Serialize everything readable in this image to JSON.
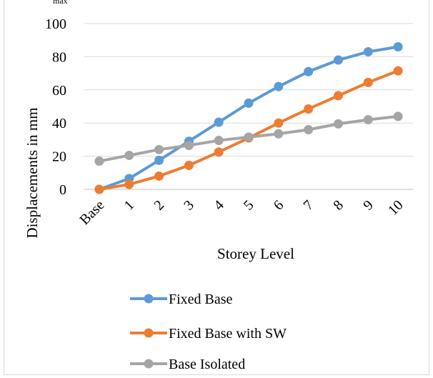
{
  "chart_data": {
    "type": "line",
    "title": "",
    "xlabel": "Storey Level",
    "ylabel": "Displacements in mm",
    "categories": [
      "Base",
      "1",
      "2",
      "3",
      "4",
      "5",
      "6",
      "7",
      "8",
      "9",
      "10"
    ],
    "ylim": [
      0,
      100
    ],
    "yticks": [
      "0",
      "20",
      "40",
      "60",
      "80",
      "100"
    ],
    "grid": true,
    "legend_position": "bottom",
    "series": [
      {
        "name": "Fixed Base",
        "color": "#5b9bd5",
        "values": [
          0,
          6.5,
          17.5,
          29,
          40.5,
          52,
          62,
          71,
          78,
          83,
          86
        ]
      },
      {
        "name": "Fixed Base with SW",
        "color": "#ed7d31",
        "values": [
          0,
          3,
          8,
          14.5,
          22.5,
          31,
          40,
          48.5,
          56.5,
          64.5,
          71.5
        ]
      },
      {
        "name": "Base Isolated",
        "color": "#a5a5a5",
        "values": [
          17,
          20.5,
          24,
          26.5,
          29.5,
          31.5,
          33.5,
          36,
          39.5,
          42,
          44
        ]
      }
    ]
  },
  "top_fragment_text": "max"
}
